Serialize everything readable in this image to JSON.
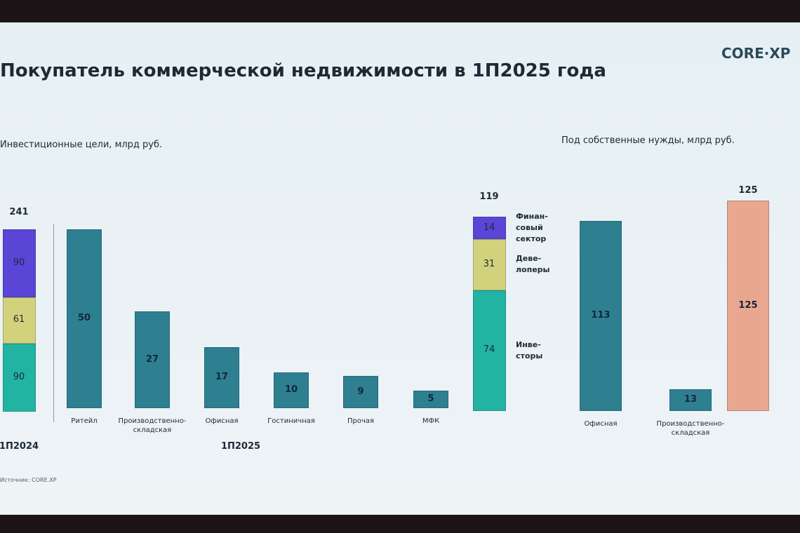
{
  "header": {
    "title": "Покупатель коммерческой недвижимости в 1П2025 года",
    "logo": "CORE·XP"
  },
  "source": "Источник: CORE.XP",
  "chart_data": [
    {
      "type": "stacked-bar",
      "subtitle": "Инвестиционные цели, млрд руб.",
      "categories": [
        "1П2024"
      ],
      "totals": [
        241
      ],
      "series": [
        {
          "color": "#22b3a3",
          "values": [
            90
          ]
        },
        {
          "color": "#d3d27c",
          "values": [
            61
          ]
        },
        {
          "color": "#5a45d6",
          "values": [
            90
          ]
        }
      ]
    },
    {
      "type": "bar",
      "group_label": "1П2025",
      "color": "#2e7f90",
      "categories": [
        "Ритейл",
        "Производственно-\nскладская",
        "Офисная",
        "Гостиничная",
        "Прочая",
        "МФК"
      ],
      "values": [
        50,
        27,
        17,
        10,
        9,
        5
      ]
    },
    {
      "type": "stacked-bar",
      "categories": [
        null
      ],
      "totals": [
        119
      ],
      "series": [
        {
          "name": "Инве-\nсторы",
          "color": "#22b3a3",
          "values": [
            74
          ]
        },
        {
          "name": "Деве-\nлоперы",
          "color": "#d3d27c",
          "values": [
            31
          ]
        },
        {
          "name": "Финан-\nсовый\nсектор",
          "color": "#5a45d6",
          "values": [
            14
          ]
        }
      ]
    },
    {
      "type": "bar",
      "subtitle": "Под собственные нужды, млрд руб.",
      "categories": [
        "Офисная",
        "Производственно-\nскладская",
        null
      ],
      "values": [
        113,
        13,
        125
      ],
      "colors": [
        "#2e7f90",
        "#2e7f90",
        "#e9a78f"
      ],
      "totals": [
        null,
        null,
        125
      ]
    }
  ]
}
